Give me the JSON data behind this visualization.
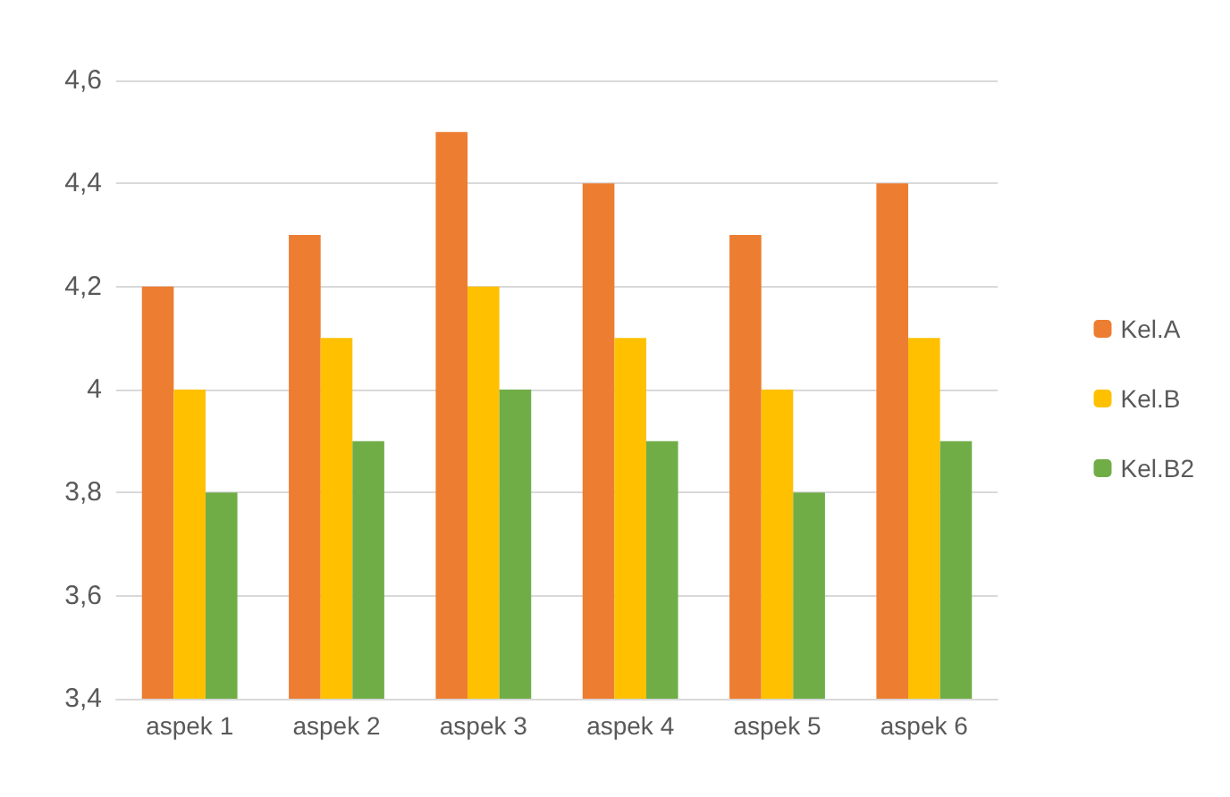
{
  "chart_data": {
    "type": "bar",
    "categories": [
      "aspek 1",
      "aspek 2",
      "aspek 3",
      "aspek 4",
      "aspek 5",
      "aspek 6"
    ],
    "series": [
      {
        "name": "Kel.A",
        "color": "#ed7d31",
        "values": [
          4.2,
          4.3,
          4.5,
          4.4,
          4.3,
          4.4
        ]
      },
      {
        "name": "Kel.B",
        "color": "#ffc000",
        "values": [
          4.0,
          4.1,
          4.2,
          4.1,
          4.0,
          4.1
        ]
      },
      {
        "name": "Kel.B2",
        "color": "#70ad47",
        "values": [
          3.8,
          3.9,
          4.0,
          3.9,
          3.8,
          3.9
        ]
      }
    ],
    "ylim": [
      3.4,
      4.6
    ],
    "yticks": [
      {
        "value": 3.4,
        "label": "3,4"
      },
      {
        "value": 3.6,
        "label": "3,6"
      },
      {
        "value": 3.8,
        "label": "3,8"
      },
      {
        "value": 4,
        "label": "4"
      },
      {
        "value": 4.2,
        "label": "4,2"
      },
      {
        "value": 4.4,
        "label": "4,4"
      },
      {
        "value": 4.6,
        "label": "4,6"
      }
    ],
    "grid": "y",
    "legend": "right"
  }
}
